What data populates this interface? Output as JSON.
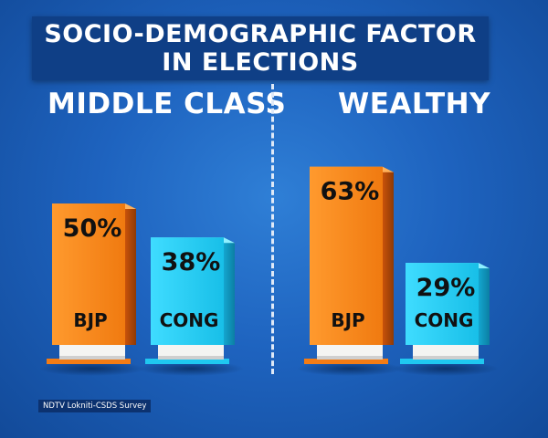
{
  "chart_data": {
    "type": "bar",
    "title": "SOCIO-DEMOGRAPHIC FACTOR",
    "subtitle": "IN ELECTIONS",
    "groups": [
      {
        "name": "MIDDLE CLASS",
        "bars": [
          {
            "party": "BJP",
            "value": 50,
            "label": "50%"
          },
          {
            "party": "CONG",
            "value": 38,
            "label": "38%"
          }
        ]
      },
      {
        "name": "WEALTHY",
        "bars": [
          {
            "party": "BJP",
            "value": 63,
            "label": "63%"
          },
          {
            "party": "CONG",
            "value": 29,
            "label": "29%"
          }
        ]
      }
    ],
    "colors": {
      "BJP": "#f47c14",
      "CONG": "#1fc8f0"
    }
  },
  "source": "NDTV Lokniti-CSDS Survey"
}
